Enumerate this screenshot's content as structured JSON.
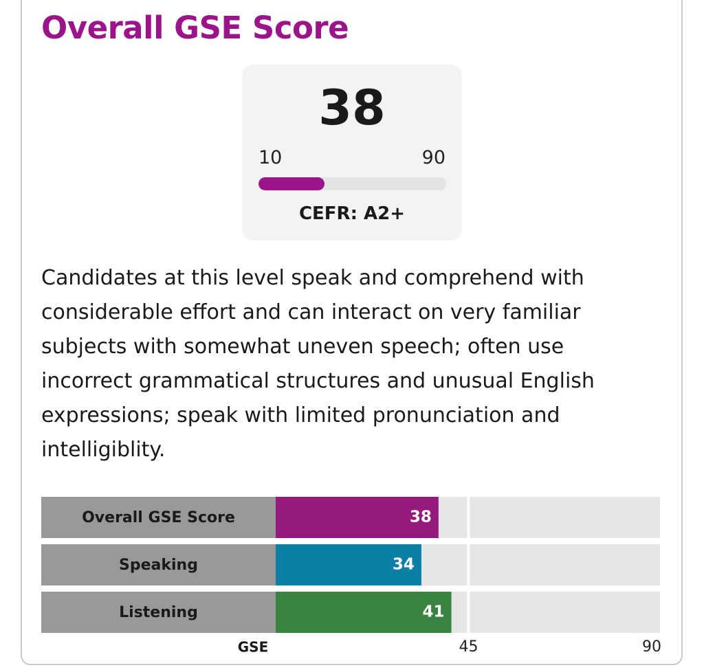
{
  "header": {
    "title": "Overall GSE Score"
  },
  "score_card": {
    "score": 38,
    "min": 10,
    "max": 90,
    "cefr": "CEFR: A2+"
  },
  "description": "Candidates at this level speak and comprehend with considerable effort and can interact on very familiar subjects with somewhat uneven speech; often use incorrect grammatical structures and unusual English expressions; speak with limited pronunciation and intelligiblity.",
  "chart_data": {
    "type": "bar",
    "orientation": "horizontal",
    "categories": [
      "Overall GSE Score",
      "Speaking",
      "Listening"
    ],
    "values": [
      38,
      34,
      41
    ],
    "colors": [
      "#951a7c",
      "#0b7fa6",
      "#3a8340"
    ],
    "xlabel": "GSE",
    "xlim": [
      0,
      90
    ],
    "xticks": [
      45,
      90
    ],
    "grid": true
  }
}
